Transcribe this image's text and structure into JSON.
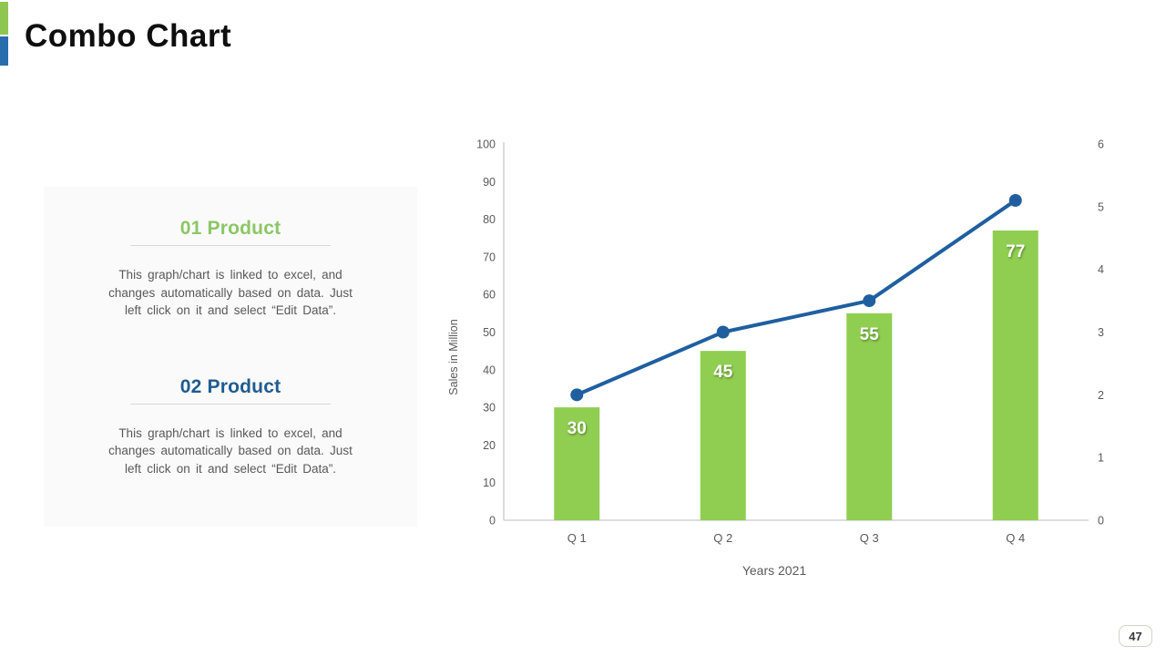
{
  "slide": {
    "title": "Combo Chart",
    "page_number": "47",
    "accent_colors": {
      "green": "#8dc752",
      "blue": "#2a6dad"
    }
  },
  "panel": {
    "sections": [
      {
        "heading": "01 Product",
        "heading_color": "#8bc765",
        "body_lines": [
          "This graph/chart is linked to excel, and",
          "changes automatically based on data. Just",
          "left click on it and select “Edit Data”."
        ]
      },
      {
        "heading": "02 Product",
        "heading_color": "#1e5c90",
        "body_lines": [
          "This graph/chart is linked to excel, and",
          "changes automatically based on data. Just",
          "left click on it and select “Edit Data”."
        ]
      }
    ]
  },
  "chart_data": {
    "type": "combo",
    "title": "",
    "categories": [
      "Q 1",
      "Q 2",
      "Q 3",
      "Q 4"
    ],
    "series": [
      {
        "name": "01 Product",
        "chart": "bar",
        "axis": "left",
        "color": "#90ce51",
        "values": [
          30,
          45,
          55,
          77
        ],
        "data_labels": [
          "30",
          "45",
          "55",
          "77"
        ]
      },
      {
        "name": "02 Product",
        "chart": "line",
        "axis": "right",
        "color": "#1f5fa0",
        "values": [
          2,
          3,
          3.5,
          5.1
        ]
      }
    ],
    "left_axis": {
      "title": "Sales in Million",
      "min": 0,
      "max": 100,
      "step": 10
    },
    "right_axis": {
      "title": "",
      "min": 0,
      "max": 6,
      "step": 1
    },
    "x_axis": {
      "title": "Years 2021"
    },
    "grid": false,
    "legend": "none",
    "tick_color": "#595959",
    "axis_line_color": "#c9c9c9"
  }
}
